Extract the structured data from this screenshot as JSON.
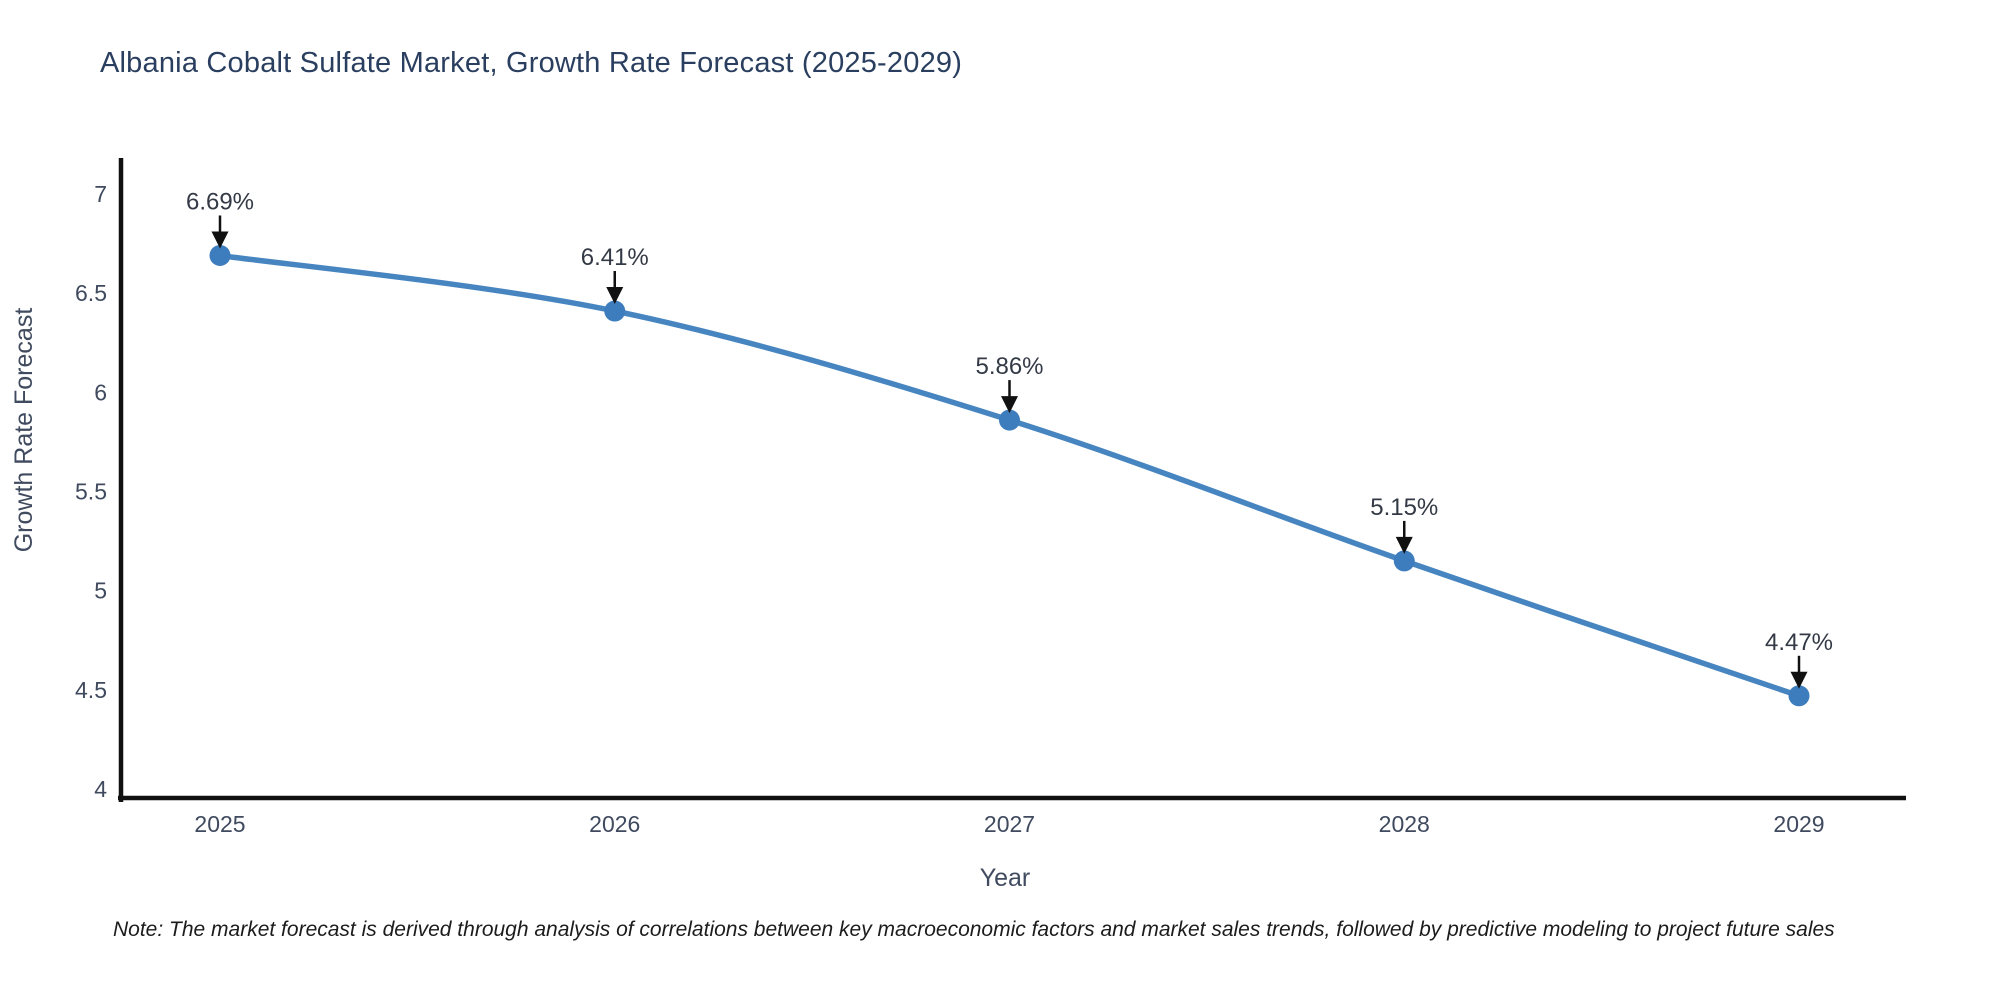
{
  "title": "Albania Cobalt Sulfate Market, Growth Rate Forecast (2025-2029)",
  "note": "Note: The market forecast is derived through analysis of correlations between key macroeconomic factors and market sales trends, followed by predictive modeling to project future sales",
  "chart_data": {
    "type": "line",
    "title": "Albania Cobalt Sulfate Market, Growth Rate Forecast (2025-2029)",
    "x": [
      "2025",
      "2026",
      "2027",
      "2028",
      "2029"
    ],
    "values": [
      6.69,
      6.41,
      5.86,
      5.15,
      4.47
    ],
    "point_labels": [
      "6.69%",
      "6.41%",
      "5.86%",
      "5.15%",
      "4.47%"
    ],
    "xlabel": "Year",
    "ylabel": "Growth Rate Forecast",
    "ylim": [
      4,
      7
    ],
    "yticks": [
      4,
      4.5,
      5,
      5.5,
      6,
      6.5,
      7
    ],
    "grid": false,
    "legend": "none",
    "smooth": true,
    "colors": {
      "line": "#4785c1",
      "marker": "#3d7dbd",
      "axis": "#111111",
      "title": "#2a3f5f",
      "tick": "#3f4a5e",
      "axis_label": "#404b5f",
      "annotation_text": "#333a45",
      "annotation_arrow": "#111111",
      "background": "#ffffff"
    }
  }
}
